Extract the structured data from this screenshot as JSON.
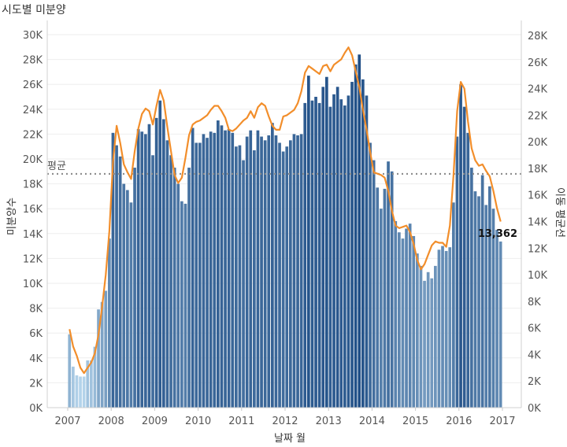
{
  "title": "시도별 미분양",
  "chart_data": {
    "type": "bar",
    "title": "시도별 미분양",
    "xlabel": "날짜 월",
    "ylabel": "미분양수",
    "ylabel_right": "이동 평균선",
    "x_ticks": [
      "2007",
      "2008",
      "2009",
      "2010",
      "2011",
      "2012",
      "2013",
      "2014",
      "2015",
      "2016",
      "2017"
    ],
    "y_ticks_left": [
      "0K",
      "2K",
      "4K",
      "6K",
      "8K",
      "10K",
      "12K",
      "14K",
      "16K",
      "18K",
      "20K",
      "22K",
      "24K",
      "26K",
      "28K",
      "30K"
    ],
    "y_ticks_right": [
      "0K",
      "2K",
      "4K",
      "6K",
      "8K",
      "10K",
      "12K",
      "14K",
      "16K",
      "18K",
      "20K",
      "22K",
      "24K",
      "26K",
      "28K"
    ],
    "ylim_left": [
      0,
      30000
    ],
    "ylim_right": [
      0,
      28000
    ],
    "x_start": "2007-01",
    "bar_values": [
      5900,
      3300,
      2600,
      2500,
      2500,
      3800,
      3800,
      4900,
      7900,
      8500,
      9400,
      13600,
      22100,
      21100,
      20200,
      18000,
      17500,
      16500,
      19300,
      22400,
      22200,
      22000,
      22800,
      20300,
      23300,
      24700,
      23200,
      21500,
      20300,
      19300,
      18000,
      16600,
      16400,
      19300,
      22500,
      21300,
      21300,
      22000,
      21700,
      22200,
      22100,
      23100,
      22700,
      22300,
      22400,
      22100,
      21000,
      21100,
      19900,
      21800,
      22300,
      20700,
      22300,
      21800,
      21500,
      21900,
      22900,
      21900,
      21300,
      20600,
      21000,
      21500,
      22000,
      21900,
      22000,
      24500,
      26700,
      24700,
      25000,
      24500,
      25800,
      26600,
      24200,
      25200,
      25800,
      24800,
      24300,
      25100,
      26200,
      27600,
      28400,
      26400,
      25100,
      21300,
      19900,
      17700,
      16000,
      17600,
      19800,
      19000,
      15000,
      14100,
      13600,
      14400,
      14800,
      13800,
      12400,
      11400,
      10200,
      10900,
      10400,
      11400,
      12700,
      13000,
      12600,
      12900,
      16500,
      21800,
      26000,
      24200,
      22100,
      19300,
      17400,
      17000,
      18700,
      16300,
      17800,
      16000,
      14300,
      13362
    ],
    "moving_average": [
      5900,
      4600,
      3900,
      3000,
      2600,
      3000,
      3400,
      4100,
      5500,
      7600,
      10000,
      13300,
      18500,
      21200,
      19900,
      18300,
      17700,
      17200,
      19300,
      21000,
      22100,
      22500,
      22300,
      21300,
      22700,
      23900,
      23100,
      21100,
      19300,
      17500,
      16900,
      17300,
      18800,
      20500,
      21300,
      21500,
      21600,
      21800,
      22000,
      22400,
      22700,
      22700,
      22300,
      21800,
      20900,
      20800,
      21000,
      21300,
      21600,
      21800,
      22300,
      21800,
      22600,
      22900,
      22700,
      21900,
      21200,
      20900,
      20900,
      21900,
      22000,
      22200,
      22400,
      22900,
      23800,
      25200,
      25700,
      25500,
      25300,
      25100,
      25700,
      25800,
      25300,
      25800,
      26000,
      26200,
      26700,
      27100,
      26500,
      25300,
      24100,
      22400,
      20900,
      19200,
      17700,
      17600,
      17500,
      17300,
      16300,
      14800,
      13700,
      13500,
      13600,
      13700,
      13200,
      12300,
      11100,
      10400,
      10800,
      11500,
      12200,
      12500,
      12400,
      12400,
      12100,
      13700,
      17500,
      22300,
      24500,
      24000,
      21500,
      19500,
      18600,
      18200,
      18300,
      17800,
      17400,
      16300,
      15000,
      14000
    ],
    "average": 18800,
    "average_label": "평균",
    "last_value_label": "13,362",
    "colors": {
      "bar_light": "#b3d3ea",
      "bar_dark": "#1f4e86",
      "moving_average_line": "#f28e2b",
      "average_line": "#8c8c8c"
    },
    "grid": true,
    "legend": "none"
  }
}
